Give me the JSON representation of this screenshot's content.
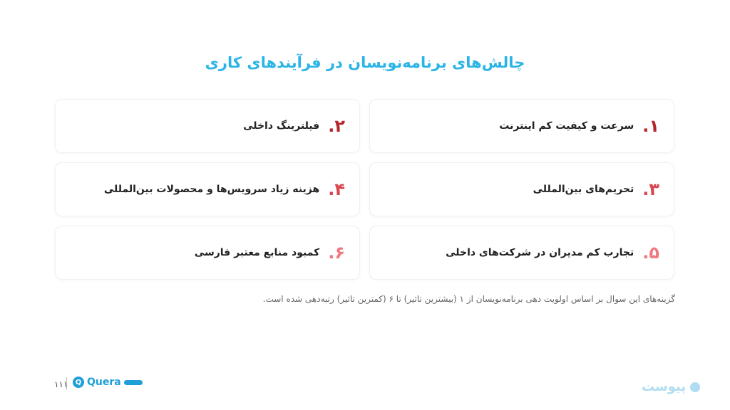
{
  "title": "چالش‌های برنامه‌نویسان در فرآیندهای کاری",
  "items": [
    {
      "num": "۱.",
      "text": "سرعت و کیفیت کم اینترنت",
      "color": "#b3262c"
    },
    {
      "num": "۲.",
      "text": "فیلترینگ داخلی",
      "color": "#b3262c"
    },
    {
      "num": "۳.",
      "text": "تحریم‌های بین‌المللی",
      "color": "#d9454f"
    },
    {
      "num": "۴.",
      "text": "هزینه زیاد سرویس‌ها و محصولات بین‌المللی",
      "color": "#d9454f"
    },
    {
      "num": "۵.",
      "text": "تجارب کم مدیران در شرکت‌های داخلی",
      "color": "#ef7880"
    },
    {
      "num": "۶.",
      "text": "کمبود منابع معتبر فارسی",
      "color": "#ef7880"
    }
  ],
  "note": "گزینه‌های این سوال بر اساس اولویت دهی برنامه‌نویسان از ۱ (بیشترین تاثیر) تا ۶ (کمترین تاثیر) رتبه‌دهی شده است.",
  "footer": {
    "page": "۱۱۱",
    "quera_logo": "Quera",
    "peivast_logo": "پیوست"
  }
}
